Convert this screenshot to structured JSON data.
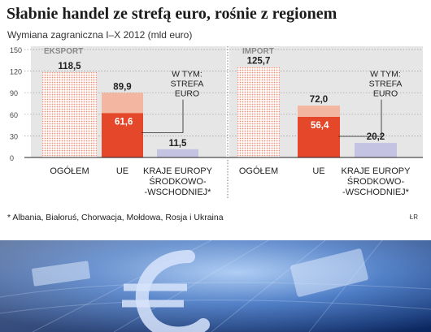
{
  "title": "Słabnie handel ze strefą euro, rośnie z regionem",
  "subtitle": "Wymiana zagraniczna I–X 2012 (mld euro)",
  "footnote": "* Albania, Białoruś, Chorwacja, Mołdowa, Rosja i Ukraina",
  "credit": "ŁR",
  "colors": {
    "total_dotted": "#f08d73",
    "eu_total": "#f3b6a0",
    "eu_euro_zone": "#e4472a",
    "east_europe": "#c4c4e2",
    "section_bg": "#e6e6e6",
    "photo_dark": "#0c2e6e",
    "photo_light": "#7aa8e6"
  },
  "chart_data": [
    {
      "type": "bar",
      "panel": "EKSPORT",
      "ylim": [
        0,
        150
      ],
      "yticks": [
        "0",
        "30",
        "60",
        "90",
        "120",
        "150"
      ],
      "categories": [
        "OGÓŁEM",
        "UE",
        "KRAJE EUROPY ŚRODKOWO-WSCHODNIEJ*"
      ],
      "category_lines": [
        [
          "OGÓŁEM"
        ],
        [
          "UE"
        ],
        [
          "KRAJE EUROPY",
          "ŚRODKOWO-",
          "-WSCHODNIEJ*"
        ]
      ],
      "values": [
        118.5,
        89.9,
        11.5
      ],
      "labels": [
        "118,5",
        "89,9",
        "11,5"
      ],
      "inner_value": 61.6,
      "inner_label": "61,6",
      "annotation": [
        "W TYM:",
        "STREFA",
        "EURO"
      ]
    },
    {
      "type": "bar",
      "panel": "IMPORT",
      "ylim": [
        0,
        150
      ],
      "yticks": [],
      "categories": [
        "OGÓŁEM",
        "UE",
        "KRAJE EUROPY ŚRODKOWO-WSCHODNIEJ*"
      ],
      "category_lines": [
        [
          "OGÓŁEM"
        ],
        [
          "UE"
        ],
        [
          "KRAJE EUROPY",
          "ŚRODKOWO-",
          "-WSCHODNIEJ*"
        ]
      ],
      "values": [
        125.7,
        72.0,
        20.2
      ],
      "labels": [
        "125,7",
        "72,0",
        "20,2"
      ],
      "inner_value": 56.4,
      "inner_label": "56,4",
      "annotation": [
        "W TYM:",
        "STREFA",
        "EURO"
      ]
    }
  ]
}
